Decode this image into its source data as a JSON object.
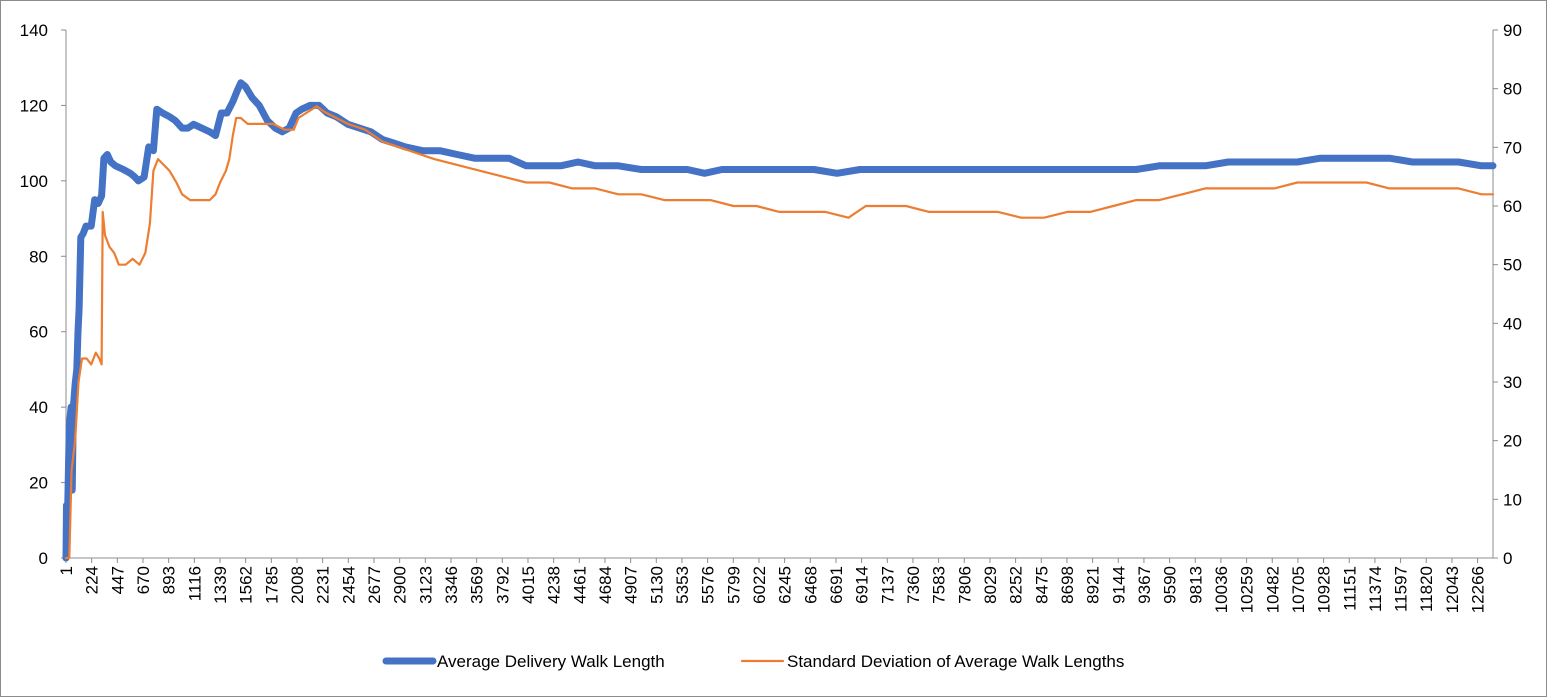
{
  "chart_data": {
    "type": "line",
    "title": "",
    "xlabel": "",
    "ylabel": "",
    "y2label": "",
    "x_tick_labels": [
      "1",
      "224",
      "447",
      "670",
      "893",
      "1116",
      "1339",
      "1562",
      "1785",
      "2008",
      "2231",
      "2454",
      "2677",
      "2900",
      "3123",
      "3346",
      "3569",
      "3792",
      "4015",
      "4238",
      "4461",
      "4684",
      "4907",
      "5130",
      "5353",
      "5576",
      "5799",
      "6022",
      "6245",
      "6468",
      "6691",
      "6914",
      "7137",
      "7360",
      "7583",
      "7806",
      "8029",
      "8252",
      "8475",
      "8698",
      "8921",
      "9144",
      "9367",
      "9590",
      "9813",
      "10036",
      "10259",
      "10482",
      "10705",
      "10928",
      "11151",
      "11374",
      "11597",
      "11820",
      "12043",
      "12266"
    ],
    "xlim": [
      1,
      12400
    ],
    "ylim": [
      0,
      140
    ],
    "y_ticks": [
      "0",
      "20",
      "40",
      "60",
      "80",
      "100",
      "120",
      "140"
    ],
    "y2lim": [
      0,
      90
    ],
    "y2_ticks": [
      "0",
      "10",
      "20",
      "30",
      "40",
      "50",
      "60",
      "70",
      "80",
      "90"
    ],
    "grid": false,
    "legend_position": "bottom",
    "series": [
      {
        "name": "Average Delivery Walk Length",
        "axis": "left",
        "color": "#4472C4",
        "points": [
          [
            1,
            0
          ],
          [
            5,
            14
          ],
          [
            15,
            12
          ],
          [
            30,
            35
          ],
          [
            45,
            40
          ],
          [
            55,
            18
          ],
          [
            65,
            40
          ],
          [
            80,
            46
          ],
          [
            95,
            50
          ],
          [
            105,
            60
          ],
          [
            115,
            66
          ],
          [
            130,
            85
          ],
          [
            150,
            86
          ],
          [
            175,
            88
          ],
          [
            200,
            88
          ],
          [
            220,
            88
          ],
          [
            250,
            95
          ],
          [
            280,
            94
          ],
          [
            310,
            96
          ],
          [
            330,
            106
          ],
          [
            360,
            107
          ],
          [
            390,
            105
          ],
          [
            430,
            104
          ],
          [
            500,
            103
          ],
          [
            560,
            102
          ],
          [
            600,
            101
          ],
          [
            630,
            100
          ],
          [
            680,
            101
          ],
          [
            720,
            109
          ],
          [
            760,
            108
          ],
          [
            790,
            119
          ],
          [
            840,
            118
          ],
          [
            900,
            117
          ],
          [
            950,
            116
          ],
          [
            1010,
            114
          ],
          [
            1060,
            114
          ],
          [
            1110,
            115
          ],
          [
            1180,
            114
          ],
          [
            1250,
            113
          ],
          [
            1300,
            112
          ],
          [
            1350,
            118
          ],
          [
            1400,
            118
          ],
          [
            1450,
            121
          ],
          [
            1490,
            124
          ],
          [
            1520,
            126
          ],
          [
            1560,
            125
          ],
          [
            1620,
            122
          ],
          [
            1680,
            120
          ],
          [
            1750,
            116
          ],
          [
            1820,
            114
          ],
          [
            1880,
            113
          ],
          [
            1940,
            114
          ],
          [
            2000,
            118
          ],
          [
            2050,
            119
          ],
          [
            2120,
            120
          ],
          [
            2200,
            120
          ],
          [
            2270,
            118
          ],
          [
            2350,
            117
          ],
          [
            2450,
            115
          ],
          [
            2550,
            114
          ],
          [
            2650,
            113
          ],
          [
            2750,
            111
          ],
          [
            2850,
            110
          ],
          [
            2950,
            109
          ],
          [
            3100,
            108
          ],
          [
            3250,
            108
          ],
          [
            3400,
            107
          ],
          [
            3550,
            106
          ],
          [
            3700,
            106
          ],
          [
            3850,
            106
          ],
          [
            4000,
            104
          ],
          [
            4150,
            104
          ],
          [
            4300,
            104
          ],
          [
            4450,
            105
          ],
          [
            4600,
            104
          ],
          [
            4800,
            104
          ],
          [
            5000,
            103
          ],
          [
            5200,
            103
          ],
          [
            5400,
            103
          ],
          [
            5550,
            102
          ],
          [
            5700,
            103
          ],
          [
            5900,
            103
          ],
          [
            6100,
            103
          ],
          [
            6300,
            103
          ],
          [
            6500,
            103
          ],
          [
            6700,
            102
          ],
          [
            6900,
            103
          ],
          [
            7100,
            103
          ],
          [
            7300,
            103
          ],
          [
            7500,
            103
          ],
          [
            7700,
            103
          ],
          [
            7900,
            103
          ],
          [
            8100,
            103
          ],
          [
            8300,
            103
          ],
          [
            8500,
            103
          ],
          [
            8700,
            103
          ],
          [
            8900,
            103
          ],
          [
            9100,
            103
          ],
          [
            9300,
            103
          ],
          [
            9500,
            104
          ],
          [
            9700,
            104
          ],
          [
            9900,
            104
          ],
          [
            10100,
            105
          ],
          [
            10300,
            105
          ],
          [
            10500,
            105
          ],
          [
            10700,
            105
          ],
          [
            10900,
            106
          ],
          [
            11100,
            106
          ],
          [
            11300,
            106
          ],
          [
            11500,
            106
          ],
          [
            11700,
            105
          ],
          [
            11900,
            105
          ],
          [
            12100,
            105
          ],
          [
            12300,
            104
          ],
          [
            12400,
            104
          ]
        ]
      },
      {
        "name": "Standard Deviation of Average Walk Lengths",
        "axis": "right",
        "color": "#ED7D31",
        "points": [
          [
            1,
            0
          ],
          [
            30,
            0
          ],
          [
            50,
            15
          ],
          [
            80,
            20
          ],
          [
            110,
            30
          ],
          [
            140,
            34
          ],
          [
            180,
            34
          ],
          [
            220,
            33
          ],
          [
            260,
            35
          ],
          [
            290,
            34
          ],
          [
            310,
            33
          ],
          [
            320,
            59
          ],
          [
            340,
            55
          ],
          [
            380,
            53
          ],
          [
            420,
            52
          ],
          [
            460,
            50
          ],
          [
            520,
            50
          ],
          [
            580,
            51
          ],
          [
            640,
            50
          ],
          [
            690,
            52
          ],
          [
            730,
            57
          ],
          [
            760,
            66
          ],
          [
            800,
            68
          ],
          [
            850,
            67
          ],
          [
            900,
            66
          ],
          [
            960,
            64
          ],
          [
            1010,
            62
          ],
          [
            1080,
            61
          ],
          [
            1150,
            61
          ],
          [
            1200,
            61
          ],
          [
            1250,
            61
          ],
          [
            1300,
            62
          ],
          [
            1340,
            64
          ],
          [
            1390,
            66
          ],
          [
            1420,
            68
          ],
          [
            1450,
            72
          ],
          [
            1480,
            75
          ],
          [
            1520,
            75
          ],
          [
            1580,
            74
          ],
          [
            1640,
            74
          ],
          [
            1700,
            74
          ],
          [
            1800,
            74
          ],
          [
            1900,
            73
          ],
          [
            1980,
            73
          ],
          [
            2020,
            75
          ],
          [
            2100,
            76
          ],
          [
            2180,
            77
          ],
          [
            2250,
            76
          ],
          [
            2350,
            75
          ],
          [
            2450,
            74
          ],
          [
            2600,
            73
          ],
          [
            2750,
            71
          ],
          [
            2900,
            70
          ],
          [
            3050,
            69
          ],
          [
            3200,
            68
          ],
          [
            3400,
            67
          ],
          [
            3600,
            66
          ],
          [
            3800,
            65
          ],
          [
            4000,
            64
          ],
          [
            4200,
            64
          ],
          [
            4400,
            63
          ],
          [
            4600,
            63
          ],
          [
            4800,
            62
          ],
          [
            5000,
            62
          ],
          [
            5200,
            61
          ],
          [
            5400,
            61
          ],
          [
            5600,
            61
          ],
          [
            5800,
            60
          ],
          [
            6000,
            60
          ],
          [
            6200,
            59
          ],
          [
            6400,
            59
          ],
          [
            6600,
            59
          ],
          [
            6800,
            58
          ],
          [
            6950,
            60
          ],
          [
            7100,
            60
          ],
          [
            7300,
            60
          ],
          [
            7500,
            59
          ],
          [
            7700,
            59
          ],
          [
            7900,
            59
          ],
          [
            8100,
            59
          ],
          [
            8300,
            58
          ],
          [
            8500,
            58
          ],
          [
            8700,
            59
          ],
          [
            8900,
            59
          ],
          [
            9100,
            60
          ],
          [
            9300,
            61
          ],
          [
            9500,
            61
          ],
          [
            9700,
            62
          ],
          [
            9900,
            63
          ],
          [
            10100,
            63
          ],
          [
            10300,
            63
          ],
          [
            10500,
            63
          ],
          [
            10700,
            64
          ],
          [
            10900,
            64
          ],
          [
            11100,
            64
          ],
          [
            11300,
            64
          ],
          [
            11500,
            63
          ],
          [
            11700,
            63
          ],
          [
            11900,
            63
          ],
          [
            12100,
            63
          ],
          [
            12300,
            62
          ],
          [
            12400,
            62
          ]
        ]
      }
    ]
  }
}
